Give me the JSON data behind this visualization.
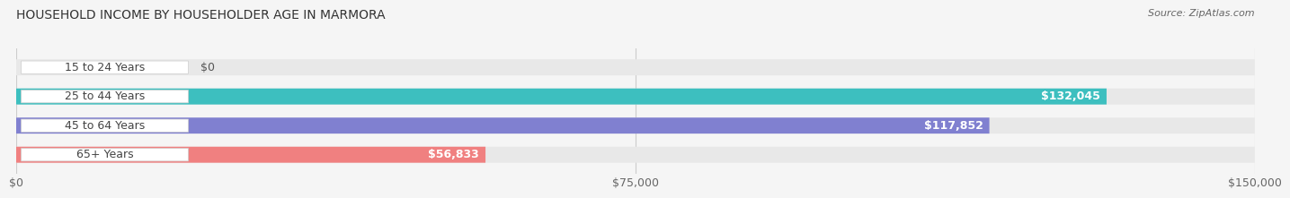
{
  "title": "HOUSEHOLD INCOME BY HOUSEHOLDER AGE IN MARMORA",
  "source": "Source: ZipAtlas.com",
  "categories": [
    "15 to 24 Years",
    "25 to 44 Years",
    "45 to 64 Years",
    "65+ Years"
  ],
  "values": [
    0,
    132045,
    117852,
    56833
  ],
  "bar_colors": [
    "#c9a8d4",
    "#3dbfbf",
    "#8080d0",
    "#f08080"
  ],
  "bar_bg_color": "#e8e8e8",
  "value_labels": [
    "$0",
    "$132,045",
    "$117,852",
    "$56,833"
  ],
  "x_ticks": [
    0,
    75000,
    150000
  ],
  "x_tick_labels": [
    "$0",
    "$75,000",
    "$150,000"
  ],
  "xlim": [
    0,
    150000
  ],
  "bar_height": 0.55,
  "background_color": "#f5f5f5",
  "title_fontsize": 10,
  "source_fontsize": 8,
  "tick_fontsize": 9,
  "label_fontsize": 9
}
